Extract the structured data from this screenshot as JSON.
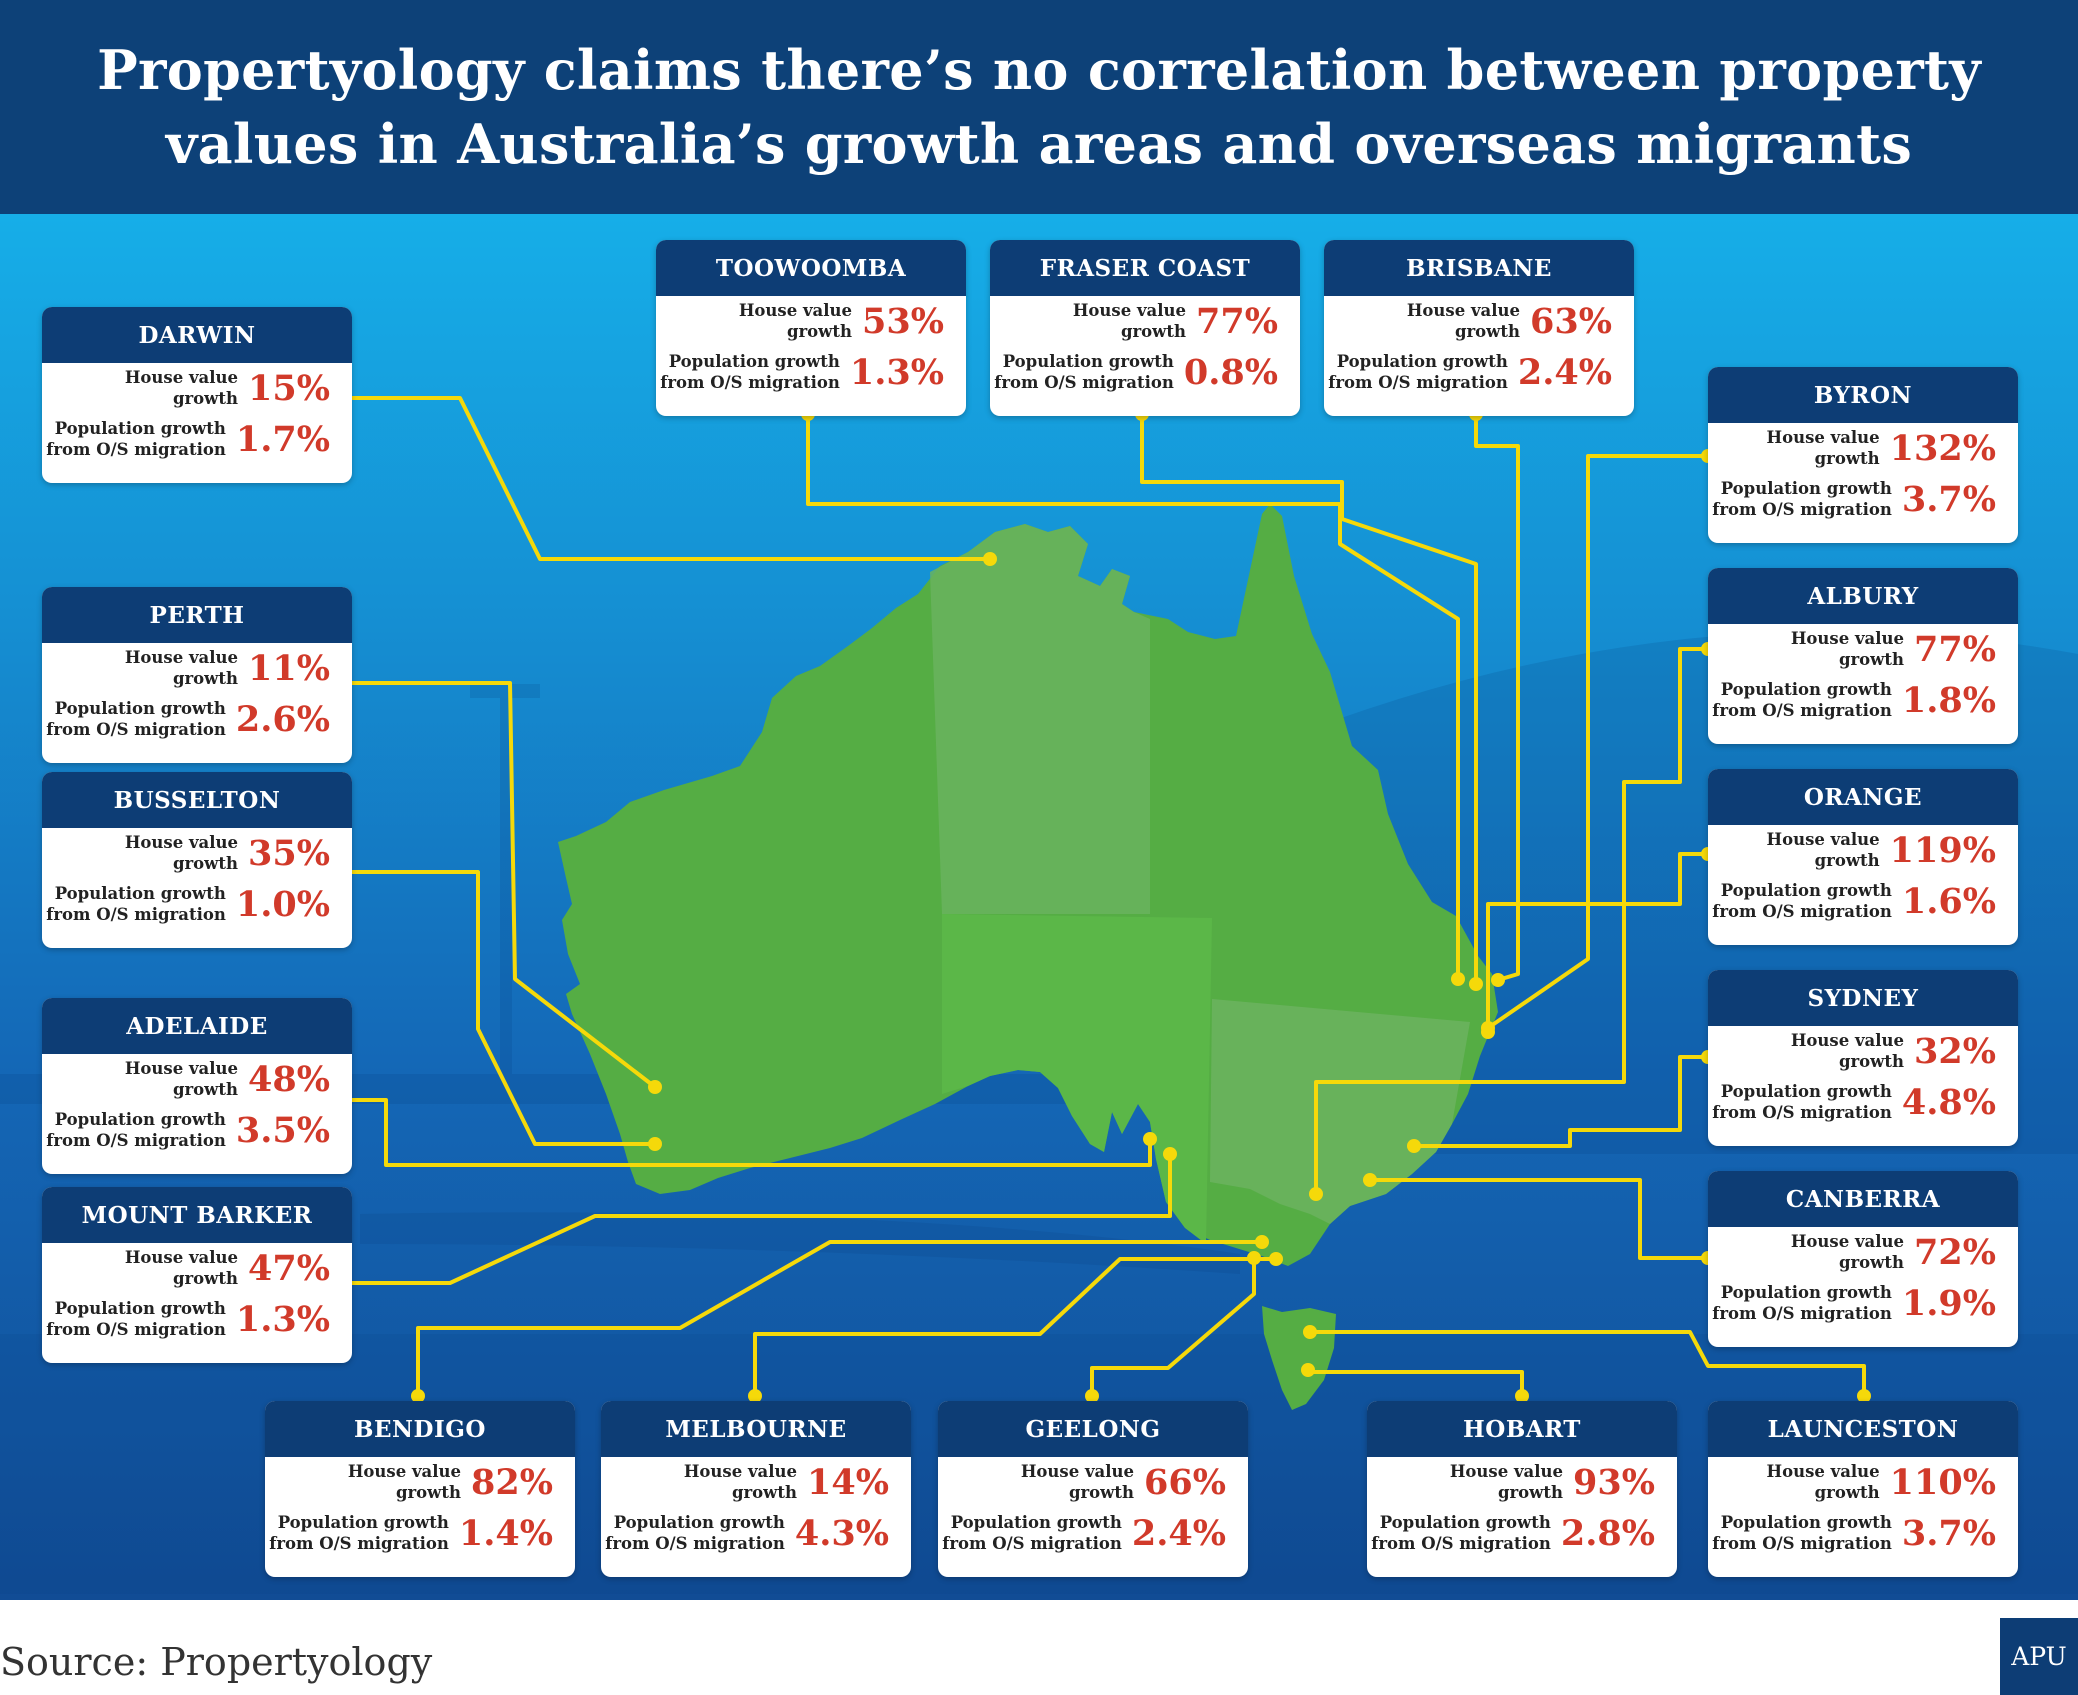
{
  "title_lines": [
    "Propertyology claims there’s no correlation between property",
    "values in Australia’s growth areas and overseas migrants"
  ],
  "labels": {
    "house": [
      "House value",
      "growth"
    ],
    "pop": [
      "Population growth",
      "from O/S migration"
    ]
  },
  "line_color": "#f5d90a",
  "value_color": "#d13a2a",
  "cities": [
    {
      "name": "TOOWOOMBA",
      "house": "53%",
      "pop": "1.3%"
    },
    {
      "name": "FRASER COAST",
      "house": "77%",
      "pop": "0.8%"
    },
    {
      "name": "BRISBANE",
      "house": "63%",
      "pop": "2.4%"
    },
    {
      "name": "DARWIN",
      "house": "15%",
      "pop": "1.7%"
    },
    {
      "name": "BYRON",
      "house": "132%",
      "pop": "3.7%"
    },
    {
      "name": "PERTH",
      "house": "11%",
      "pop": "2.6%"
    },
    {
      "name": "ALBURY",
      "house": "77%",
      "pop": "1.8%"
    },
    {
      "name": "BUSSELTON",
      "house": "35%",
      "pop": "1.0%"
    },
    {
      "name": "ORANGE",
      "house": "119%",
      "pop": "1.6%"
    },
    {
      "name": "ADELAIDE",
      "house": "48%",
      "pop": "3.5%"
    },
    {
      "name": "SYDNEY",
      "house": "32%",
      "pop": "4.8%"
    },
    {
      "name": "MOUNT BARKER",
      "house": "47%",
      "pop": "1.3%"
    },
    {
      "name": "CANBERRA",
      "house": "72%",
      "pop": "1.9%"
    },
    {
      "name": "BENDIGO",
      "house": "82%",
      "pop": "1.4%"
    },
    {
      "name": "MELBOURNE",
      "house": "14%",
      "pop": "4.3%"
    },
    {
      "name": "GEELONG",
      "house": "66%",
      "pop": "2.4%"
    },
    {
      "name": "HOBART",
      "house": "93%",
      "pop": "2.8%"
    },
    {
      "name": "LAUNCESTON",
      "house": "110%",
      "pop": "3.7%"
    }
  ],
  "source": "Source: Propertyology",
  "logo": "APU"
}
